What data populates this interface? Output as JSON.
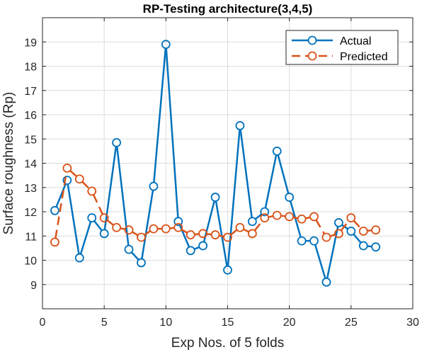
{
  "chart_data": {
    "type": "line",
    "title": "RP-Testing architecture(3,4,5)",
    "xlabel": "Exp Nos. of 5 folds",
    "ylabel": "Surface roughness (Rp)",
    "xlim": [
      0,
      30
    ],
    "ylim": [
      8,
      20
    ],
    "xticks": [
      0,
      5,
      10,
      15,
      20,
      25,
      30
    ],
    "yticks": [
      9,
      10,
      11,
      12,
      13,
      14,
      15,
      16,
      17,
      18,
      19
    ],
    "grid": true,
    "legend_position": "top-right",
    "x": [
      1,
      2,
      3,
      4,
      5,
      6,
      7,
      8,
      9,
      10,
      11,
      12,
      13,
      14,
      15,
      16,
      17,
      18,
      19,
      20,
      21,
      22,
      23,
      24,
      25,
      26,
      27
    ],
    "series": [
      {
        "name": "Actual",
        "color": "#0072BD",
        "line_style": "solid",
        "marker": "circle",
        "values": [
          12.05,
          13.3,
          10.1,
          11.75,
          11.1,
          14.85,
          10.45,
          9.9,
          13.05,
          18.9,
          11.6,
          10.4,
          10.6,
          12.6,
          9.6,
          15.55,
          11.6,
          12.0,
          14.5,
          12.6,
          10.8,
          10.8,
          9.1,
          11.55,
          11.2,
          10.6,
          10.55
        ]
      },
      {
        "name": "Predicted",
        "color": "#D95319",
        "line_style": "dashed",
        "marker": "circle",
        "values": [
          10.75,
          13.8,
          13.35,
          12.85,
          11.75,
          11.35,
          11.25,
          10.95,
          11.3,
          11.3,
          11.35,
          11.05,
          11.1,
          11.05,
          10.95,
          11.35,
          11.1,
          11.75,
          11.85,
          11.8,
          11.7,
          11.8,
          10.95,
          11.1,
          11.75,
          11.2,
          11.25
        ]
      }
    ]
  }
}
